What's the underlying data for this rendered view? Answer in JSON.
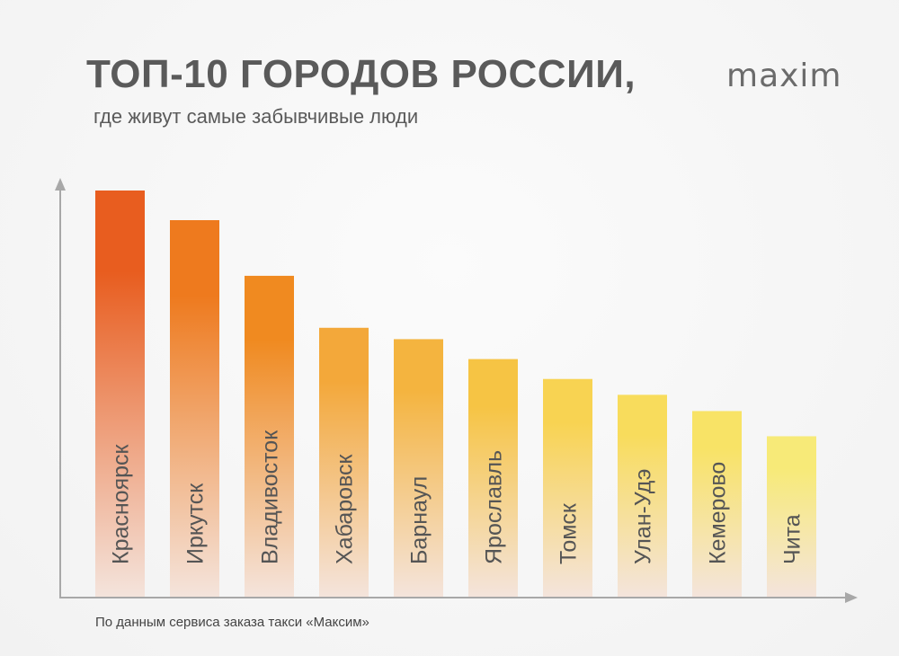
{
  "title": "ТОП-10 ГОРОДОВ РОССИИ,",
  "subtitle": "где живут самые забывчивые люди",
  "logo": "maxim",
  "source": "По данным сервиса заказа такси «Максим»",
  "chart_data": {
    "type": "bar",
    "title": "ТОП-10 ГОРОДОВ РОССИИ,",
    "subtitle": "где живут самые забывчивые люди",
    "xlabel": "",
    "ylabel": "",
    "categories": [
      "Красноярск",
      "Иркутск",
      "Владивосток",
      "Хабаровск",
      "Барнаул",
      "Ярославль",
      "Томск",
      "Улан-Удэ",
      "Кемерово",
      "Чита"
    ],
    "values": [
      100,
      92.7,
      79,
      66.2,
      63.4,
      58.5,
      53.6,
      49.7,
      45.7,
      39.5
    ],
    "value_note": "relative bar heights, no scale printed",
    "ylim": [
      0,
      102
    ],
    "grid": false,
    "legend": "none",
    "colors_top": [
      "#e85d1f",
      "#ee7a1e",
      "#f08a20",
      "#f3a83a",
      "#f4b43f",
      "#f6c444",
      "#f8d352",
      "#f8dc5c",
      "#f8e366",
      "#f7ea78"
    ],
    "color_bottom": "#f4e4dc"
  }
}
